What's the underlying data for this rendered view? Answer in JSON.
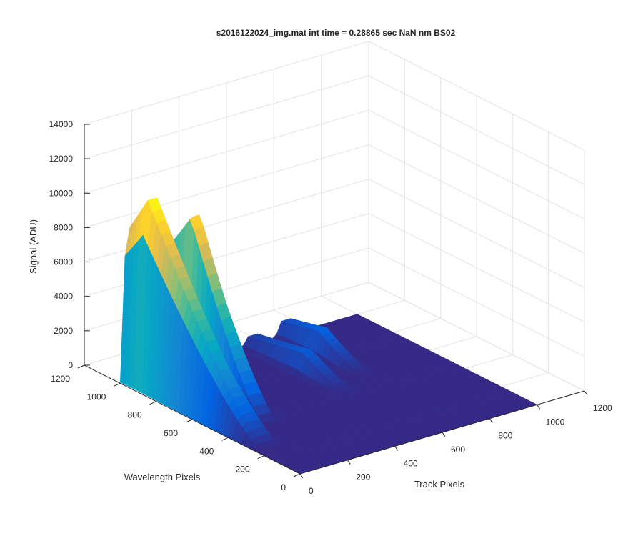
{
  "chart_data": {
    "type": "surface3d",
    "title": "s2016122024_img.mat int time = 0.28865 sec  NaN nm BS02",
    "xlabel": "Track Pixels",
    "ylabel": "Wavelength Pixels",
    "zlabel": "Signal (ADU)",
    "xlim": [
      0,
      1200
    ],
    "ylim": [
      0,
      1200
    ],
    "zlim": [
      0,
      14000
    ],
    "x_ticks": [
      "0",
      "200",
      "400",
      "600",
      "800",
      "1000",
      "1200"
    ],
    "y_ticks": [
      "0",
      "200",
      "400",
      "600",
      "800",
      "1000",
      "1200"
    ],
    "z_ticks": [
      "0",
      "2000",
      "4000",
      "6000",
      "8000",
      "10000",
      "12000",
      "14000"
    ],
    "grid": true,
    "colormap": "parula",
    "colors": {
      "low": "#352a87",
      "mid": "#12bea5",
      "high": "#f9fb0e"
    },
    "data_extent": {
      "track_pixels": [
        0,
        1000
      ],
      "wavelength_pixels": [
        0,
        1000
      ]
    },
    "series": [
      {
        "track_center": 60,
        "track_width": 45,
        "peak_signal": 11000,
        "wavelength_peak": 900,
        "wavelength_cutoff": 250
      },
      {
        "track_center": 185,
        "track_width": 40,
        "peak_signal": 10000,
        "wavelength_peak": 820,
        "wavelength_cutoff": 420
      },
      {
        "track_center": 560,
        "track_width": 35,
        "peak_signal": 1200,
        "wavelength_peak": 700,
        "wavelength_cutoff": 450
      },
      {
        "track_center": 700,
        "track_width": 35,
        "peak_signal": 1400,
        "wavelength_peak": 800,
        "wavelength_cutoff": 550
      }
    ]
  }
}
